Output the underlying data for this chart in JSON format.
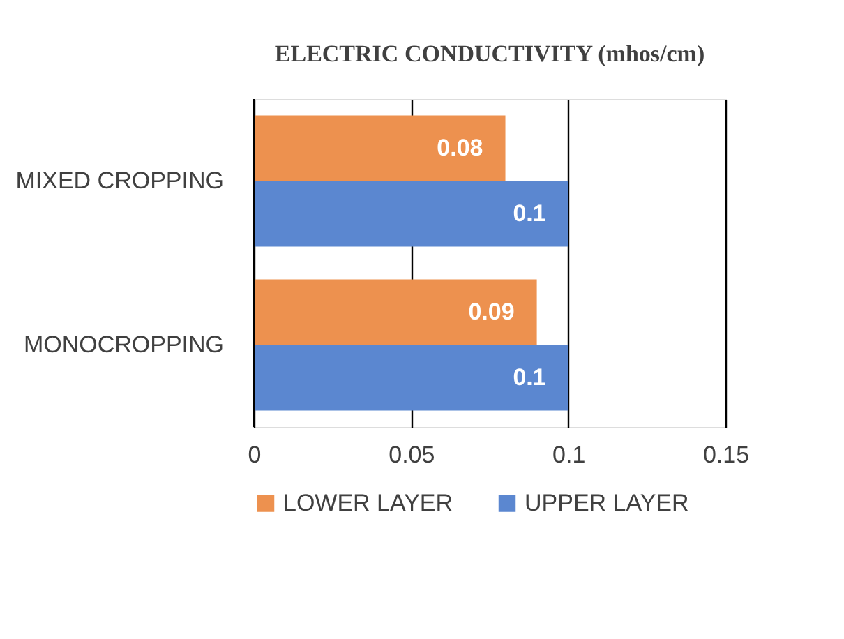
{
  "chart_data": {
    "type": "bar",
    "orientation": "horizontal",
    "title": "ELECTRIC CONDUCTIVITY (mhos/cm)",
    "categories": [
      "MIXED CROPPING",
      "MONOCROPPING"
    ],
    "series": [
      {
        "name": "LOWER LAYER",
        "color": "#ed914f",
        "values": [
          0.08,
          0.09
        ]
      },
      {
        "name": "UPPER LAYER",
        "color": "#5b87d0",
        "values": [
          0.1,
          0.1
        ]
      }
    ],
    "xlim": [
      0,
      0.15
    ],
    "xticks": [
      0,
      0.05,
      0.1,
      0.15
    ],
    "grid": "x",
    "legend": "bottom",
    "data_labels": true
  }
}
